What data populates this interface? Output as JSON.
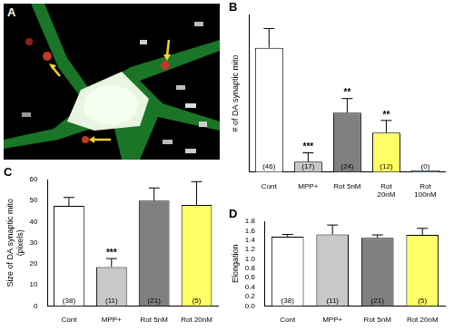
{
  "image": {
    "panel": "A"
  },
  "chart_data": [
    {
      "type": "bar",
      "panel": "B",
      "ylabel": "# of DA synaptic mito",
      "categories": [
        "Cont",
        "MPP+",
        "Rot 5nM",
        "Rot 20nM",
        "Rot 100nM"
      ],
      "values": [
        7.1,
        0.6,
        3.4,
        2.25,
        0.1
      ],
      "errors": [
        1.1,
        0.5,
        0.8,
        0.7,
        0
      ],
      "colors": [
        "#ffffff",
        "#c8c8c8",
        "#808080",
        "#ffff66",
        "#a8d8ea"
      ],
      "significance": [
        null,
        "***",
        "**",
        "**",
        null
      ],
      "n_labels": [
        "(46)",
        "(17)",
        "(24)",
        "(12)",
        "(0)"
      ],
      "ylim": [
        0,
        9
      ],
      "tick_labels": "x",
      "grid": false
    },
    {
      "type": "bar",
      "panel": "C",
      "ylabel": "Size of DA synaptic mito (pixels)",
      "categories": [
        "Cont",
        "MPP+",
        "Rot 5nM",
        "Rot 20nM"
      ],
      "values": [
        47.5,
        18.5,
        50,
        48
      ],
      "errors": [
        4,
        4,
        6,
        11
      ],
      "colors": [
        "#ffffff",
        "#c8c8c8",
        "#808080",
        "#ffff66"
      ],
      "significance": [
        null,
        "***",
        null,
        null
      ],
      "n_labels": [
        "(38)",
        "(11)",
        "(21)",
        "(5)"
      ],
      "ylim": [
        0,
        60
      ],
      "yticks": [
        0,
        10,
        20,
        30,
        40,
        50,
        60
      ],
      "grid": false
    },
    {
      "type": "bar",
      "panel": "D",
      "ylabel": "Elongation",
      "categories": [
        "Cont",
        "MPP+",
        "Rot 5nM",
        "Rot 20nM"
      ],
      "values": [
        1.47,
        1.52,
        1.45,
        1.51
      ],
      "errors": [
        0.05,
        0.2,
        0.06,
        0.14
      ],
      "colors": [
        "#ffffff",
        "#c8c8c8",
        "#808080",
        "#ffff66"
      ],
      "significance": [
        null,
        null,
        null,
        null
      ],
      "n_labels": [
        "(38)",
        "(11)",
        "(21)",
        "(5)"
      ],
      "ylim": [
        0,
        1.8
      ],
      "yticks": [
        {
          "value": 0,
          "label": "0.0"
        },
        0.2,
        0.4,
        0.6,
        0.8,
        {
          "value": 1,
          "label": "1.0"
        },
        1.2,
        1.4,
        1.6,
        1.8
      ],
      "grid": false
    }
  ]
}
